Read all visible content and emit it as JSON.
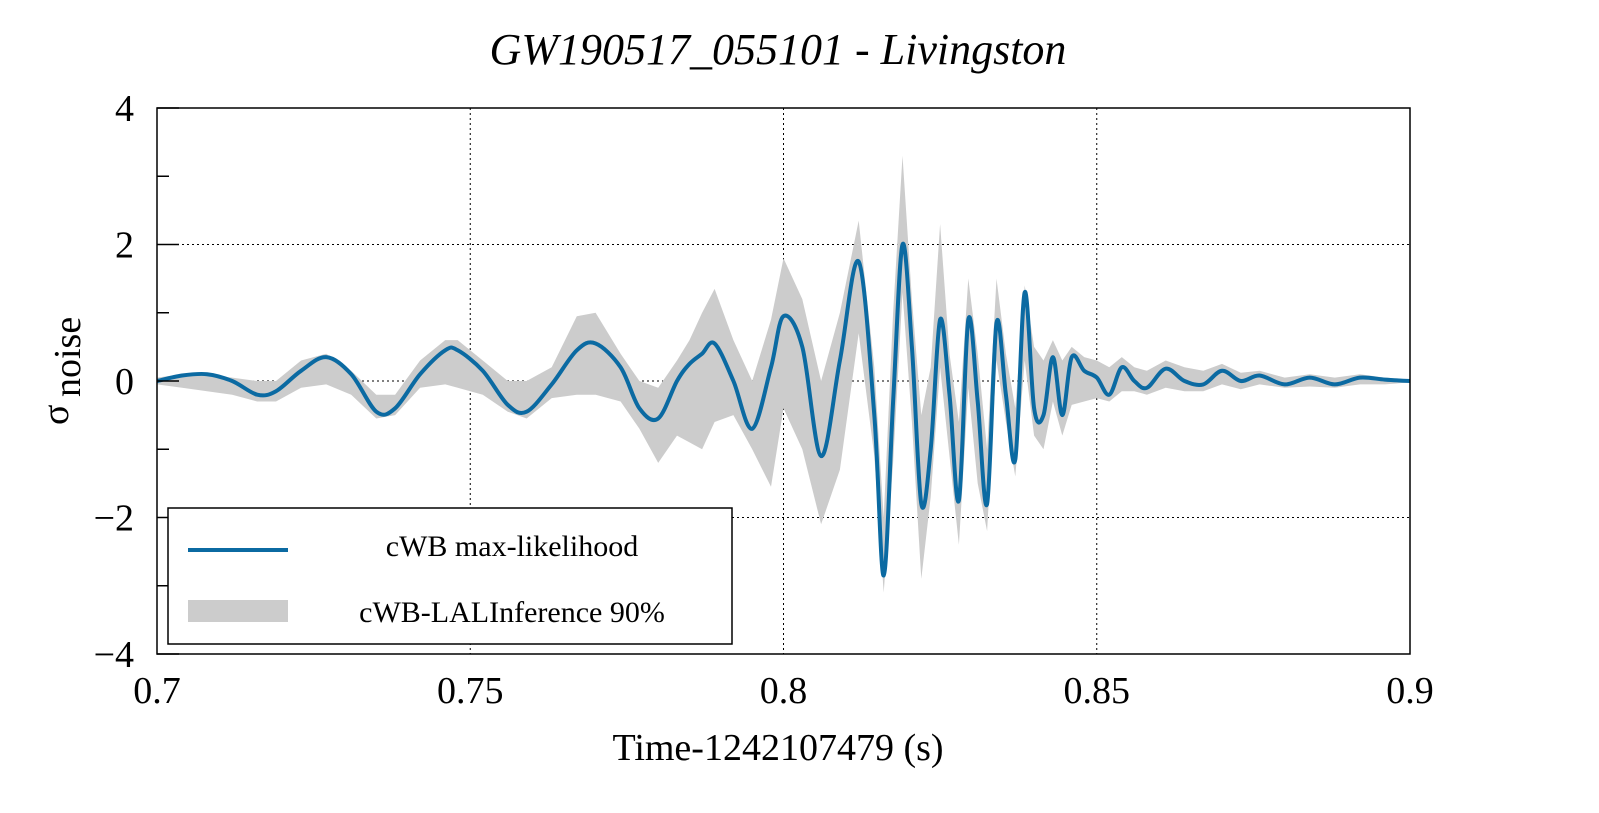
{
  "chart_data": {
    "type": "line",
    "title": "GW190517_055101 - Livingston",
    "xlabel": "Time-1242107479 (s)",
    "ylabel_main": "σ",
    "ylabel_sub": "noise",
    "xlim": [
      0.7,
      0.9
    ],
    "ylim": [
      -4,
      4
    ],
    "xticks": [
      0.7,
      0.75,
      0.8,
      0.85,
      0.9
    ],
    "xtick_labels": [
      "0.7",
      "0.75",
      "0.8",
      "0.85",
      "0.9"
    ],
    "yticks": [
      -4,
      -2,
      0,
      2,
      4
    ],
    "ytick_labels": [
      "−4",
      "−2",
      "0",
      "2",
      "4"
    ],
    "yminor_ticks": [
      -3,
      -1,
      1,
      3
    ],
    "grid": true,
    "legend_position": "bottom-left",
    "series": [
      {
        "name": "cWB max-likelihood",
        "kind": "line",
        "color": "#0b6aa2",
        "x": [
          0.7,
          0.704,
          0.708,
          0.712,
          0.716,
          0.719,
          0.723,
          0.727,
          0.731,
          0.735,
          0.738,
          0.742,
          0.746,
          0.748,
          0.752,
          0.756,
          0.759,
          0.763,
          0.767,
          0.77,
          0.774,
          0.777,
          0.78,
          0.783,
          0.785,
          0.787,
          0.789,
          0.792,
          0.795,
          0.798,
          0.8,
          0.803,
          0.806,
          0.809,
          0.812,
          0.8145,
          0.816,
          0.8175,
          0.819,
          0.8205,
          0.822,
          0.8235,
          0.825,
          0.8265,
          0.828,
          0.8295,
          0.831,
          0.8325,
          0.834,
          0.8355,
          0.837,
          0.8385,
          0.84,
          0.8415,
          0.843,
          0.8445,
          0.846,
          0.848,
          0.85,
          0.852,
          0.854,
          0.856,
          0.858,
          0.861,
          0.864,
          0.867,
          0.87,
          0.873,
          0.876,
          0.88,
          0.884,
          0.888,
          0.892,
          0.896,
          0.9
        ],
        "y": [
          0.0,
          0.08,
          0.1,
          0.0,
          -0.2,
          -0.15,
          0.15,
          0.35,
          0.1,
          -0.45,
          -0.4,
          0.1,
          0.45,
          0.45,
          0.15,
          -0.35,
          -0.45,
          -0.05,
          0.45,
          0.55,
          0.2,
          -0.4,
          -0.55,
          0.0,
          0.25,
          0.4,
          0.55,
          0.0,
          -0.7,
          0.2,
          0.95,
          0.5,
          -1.1,
          0.3,
          1.75,
          -0.5,
          -2.85,
          -0.3,
          2.0,
          0.5,
          -1.8,
          -1.0,
          0.9,
          -0.2,
          -1.75,
          0.9,
          -0.3,
          -1.8,
          0.85,
          -0.2,
          -1.15,
          1.3,
          -0.4,
          -0.5,
          0.35,
          -0.5,
          0.35,
          0.15,
          0.05,
          -0.2,
          0.2,
          0.0,
          -0.1,
          0.18,
          0.0,
          -0.05,
          0.15,
          0.0,
          0.08,
          -0.05,
          0.05,
          -0.05,
          0.05,
          0.02,
          0.0
        ]
      },
      {
        "name": "cWB-LALInference 90%",
        "kind": "band",
        "color": "#cccccc",
        "x": [
          0.7,
          0.704,
          0.708,
          0.712,
          0.716,
          0.719,
          0.723,
          0.727,
          0.731,
          0.735,
          0.738,
          0.742,
          0.746,
          0.748,
          0.752,
          0.756,
          0.759,
          0.763,
          0.767,
          0.77,
          0.774,
          0.777,
          0.78,
          0.783,
          0.785,
          0.787,
          0.789,
          0.792,
          0.795,
          0.798,
          0.8,
          0.803,
          0.806,
          0.809,
          0.812,
          0.8145,
          0.816,
          0.8175,
          0.819,
          0.8205,
          0.822,
          0.8235,
          0.825,
          0.8265,
          0.828,
          0.8295,
          0.831,
          0.8325,
          0.834,
          0.8355,
          0.837,
          0.8385,
          0.84,
          0.8415,
          0.843,
          0.8445,
          0.846,
          0.848,
          0.85,
          0.852,
          0.854,
          0.856,
          0.858,
          0.861,
          0.864,
          0.867,
          0.87,
          0.873,
          0.876,
          0.88,
          0.884,
          0.888,
          0.892,
          0.896,
          0.9
        ],
        "lower": [
          -0.05,
          -0.1,
          -0.15,
          -0.2,
          -0.3,
          -0.3,
          -0.1,
          -0.05,
          -0.2,
          -0.55,
          -0.5,
          -0.1,
          -0.05,
          -0.1,
          -0.2,
          -0.45,
          -0.55,
          -0.25,
          -0.2,
          -0.2,
          -0.3,
          -0.7,
          -1.2,
          -0.8,
          -0.9,
          -1.0,
          -0.6,
          -0.5,
          -1.0,
          -1.55,
          -0.4,
          -1.0,
          -2.1,
          -1.3,
          0.7,
          -1.1,
          -3.1,
          -1.2,
          1.3,
          -0.6,
          -2.9,
          -1.7,
          0.2,
          -1.1,
          -2.4,
          -0.1,
          -1.5,
          -2.2,
          0.3,
          -0.6,
          -1.4,
          0.3,
          -0.8,
          -1.0,
          -0.3,
          -0.8,
          -0.35,
          -0.3,
          -0.25,
          -0.3,
          -0.15,
          -0.15,
          -0.2,
          -0.1,
          -0.15,
          -0.15,
          -0.05,
          -0.12,
          -0.05,
          -0.1,
          -0.08,
          -0.1,
          -0.05,
          -0.05,
          -0.02
        ],
        "upper": [
          0.05,
          0.1,
          0.1,
          0.05,
          0.0,
          0.0,
          0.3,
          0.4,
          0.15,
          -0.2,
          -0.2,
          0.3,
          0.6,
          0.6,
          0.3,
          0.0,
          0.0,
          0.2,
          0.95,
          1.0,
          0.4,
          0.0,
          -0.1,
          0.3,
          0.6,
          1.0,
          1.35,
          0.6,
          0.0,
          0.9,
          1.8,
          1.2,
          0.0,
          1.0,
          2.35,
          0.2,
          -2.0,
          1.0,
          3.3,
          1.2,
          -0.5,
          0.2,
          2.3,
          0.4,
          -0.6,
          1.5,
          0.4,
          -1.0,
          1.5,
          0.4,
          -0.4,
          1.4,
          0.5,
          0.3,
          0.6,
          0.3,
          0.5,
          0.35,
          0.3,
          0.2,
          0.35,
          0.2,
          0.15,
          0.3,
          0.2,
          0.15,
          0.25,
          0.12,
          0.15,
          0.05,
          0.1,
          0.05,
          0.1,
          0.05,
          0.02
        ]
      }
    ]
  }
}
